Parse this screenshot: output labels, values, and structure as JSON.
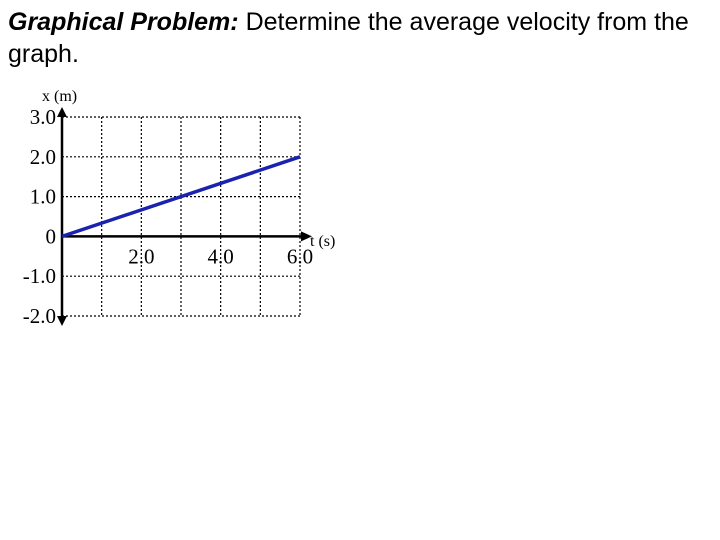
{
  "problem": {
    "heading": "Graphical Problem:",
    "text": " Determine the average velocity from the graph."
  },
  "colors": {
    "line": "#1a22b0",
    "grid": "#000000",
    "axis": "#000000"
  },
  "chart_data": {
    "type": "line",
    "title": "",
    "xlabel": "t (s)",
    "ylabel": "x (m)",
    "xlim": [
      0,
      6.0
    ],
    "ylim": [
      -2.0,
      3.0
    ],
    "x_ticks": [
      2.0,
      4.0,
      6.0
    ],
    "x_tick_labels": [
      "2.0",
      "4.0",
      "6.0"
    ],
    "y_ticks": [
      3.0,
      2.0,
      1.0,
      0,
      -1.0,
      -2.0
    ],
    "y_tick_labels": [
      "3.0",
      "2.0",
      "1.0",
      "0",
      "-1.0",
      "-2.0"
    ],
    "grid": true,
    "x_grid_step": 1.0,
    "y_grid_step": 1.0,
    "series": [
      {
        "x": [
          0,
          6.0
        ],
        "y": [
          0,
          2.0
        ]
      }
    ]
  }
}
